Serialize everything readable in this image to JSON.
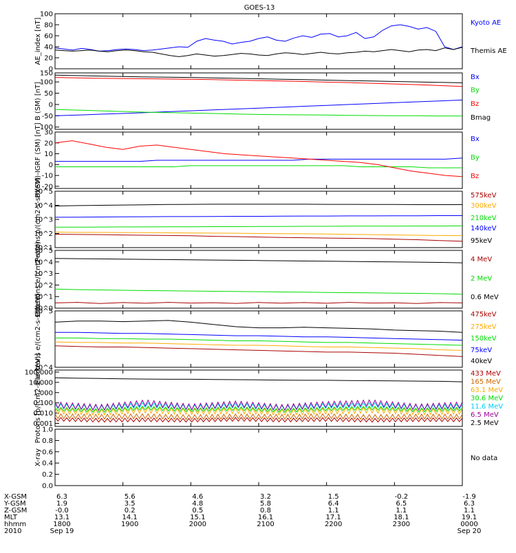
{
  "title": "GOES-13",
  "colors": {
    "black": "#000000",
    "blue": "#0000ff",
    "green": "#00dd00",
    "red": "#ff0000",
    "darkred": "#aa0000",
    "orange": "#ffaa00",
    "cyan": "#00ccff",
    "purple": "#990099",
    "lightgreen": "#55ee55",
    "brown": "#aa3300"
  },
  "chart_data": [
    {
      "type": "line",
      "ylabel": "AE_index [nT]",
      "ylim": [
        0,
        100
      ],
      "yscale": "linear",
      "yticks": [
        "0",
        "20",
        "40",
        "60",
        "80",
        "100"
      ],
      "series": [
        {
          "name": "Kyoto AE",
          "color": "#0000ff",
          "values": [
            38,
            36,
            34,
            37,
            35,
            32,
            33,
            35,
            36,
            35,
            33,
            34,
            36,
            38,
            40,
            39,
            50,
            55,
            52,
            50,
            45,
            48,
            50,
            55,
            58,
            52,
            50,
            56,
            60,
            57,
            63,
            64,
            58,
            60,
            66,
            55,
            58,
            70,
            78,
            80,
            77,
            72,
            75,
            68,
            40,
            35,
            40
          ]
        },
        {
          "name": "Themis AE",
          "color": "#000000",
          "values": [
            34,
            33,
            32,
            33,
            34,
            32,
            31,
            33,
            34,
            33,
            31,
            30,
            27,
            24,
            22,
            24,
            27,
            25,
            23,
            24,
            26,
            28,
            27,
            25,
            24,
            27,
            29,
            28,
            26,
            28,
            30,
            28,
            27,
            29,
            30,
            32,
            31,
            33,
            35,
            33,
            31,
            34,
            35,
            33,
            38,
            35,
            39
          ]
        }
      ]
    },
    {
      "type": "line",
      "ylabel": "B (SM) [nT]",
      "ylim": [
        -110,
        140
      ],
      "yscale": "linear",
      "yticks": [
        "-100",
        "-50",
        "0",
        "50",
        "100",
        "150"
      ],
      "series": [
        {
          "name": "Bx",
          "color": "#0000ff",
          "values": [
            -50,
            -47,
            -43,
            -40,
            -36,
            -32,
            -28,
            -24,
            -20,
            -16,
            -12,
            -8,
            -4,
            0,
            4,
            8,
            12,
            16,
            20
          ]
        },
        {
          "name": "By",
          "color": "#00dd00",
          "values": [
            -22,
            -25,
            -28,
            -31,
            -34,
            -36,
            -38,
            -40,
            -42,
            -44,
            -45,
            -46,
            -47,
            -48,
            -49,
            -50,
            -50,
            -51,
            -51
          ]
        },
        {
          "name": "Bz",
          "color": "#ff0000",
          "values": [
            120,
            118,
            116,
            115,
            114,
            113,
            112,
            110,
            108,
            106,
            104,
            102,
            99,
            97,
            94,
            91,
            88,
            84,
            80
          ]
        },
        {
          "name": "Bmag",
          "color": "#000000",
          "values": [
            130,
            128,
            126,
            124,
            122,
            121,
            120,
            118,
            116,
            114,
            112,
            110,
            108,
            106,
            104,
            102,
            100,
            98,
            96
          ]
        }
      ]
    },
    {
      "type": "line",
      "ylabel": "B (SM)-IGRF (SM) [nT]",
      "ylim": [
        -22,
        30
      ],
      "yscale": "linear",
      "yticks": [
        "-20",
        "-10",
        "0",
        "10",
        "20",
        "30"
      ],
      "series": [
        {
          "name": "Bx",
          "color": "#0000ff",
          "values": [
            3,
            3,
            3,
            3,
            3,
            3,
            4,
            4,
            4,
            4,
            4,
            4,
            4,
            4,
            4,
            5,
            5,
            5,
            5,
            5,
            5,
            5,
            5,
            5,
            6
          ]
        },
        {
          "name": "By",
          "color": "#00dd00",
          "values": [
            -2,
            -2,
            -2,
            -2,
            -2,
            -2,
            -2,
            -2,
            -1,
            -1,
            -1,
            -1,
            -1,
            -1,
            -1,
            -1,
            -1,
            -1,
            -2,
            -2,
            -2,
            -2,
            -3,
            -3,
            -3
          ]
        },
        {
          "name": "Bz",
          "color": "#ff0000",
          "values": [
            20,
            22,
            19,
            16,
            14,
            17,
            18,
            16,
            14,
            12,
            10,
            9,
            8,
            7,
            6,
            5,
            4,
            3,
            2,
            0,
            -3,
            -6,
            -8,
            -10,
            -11
          ]
        }
      ]
    },
    {
      "type": "line",
      "ylabel": "Protons p/(cm2-s-sr-keV)",
      "ylim": [
        1,
        5
      ],
      "yscale": "log",
      "yticks": [
        "10^1",
        "10^2",
        "10^3",
        "10^4",
        "10^5"
      ],
      "series": [
        {
          "name": "575keV",
          "color": "#aa0000",
          "values": [
            1.95,
            1.93,
            1.92,
            1.9,
            1.88,
            1.86,
            1.84,
            1.8,
            1.78,
            1.75,
            1.72,
            1.7,
            1.68,
            1.66,
            1.64,
            1.6,
            1.56,
            1.5,
            1.45
          ]
        },
        {
          "name": "300keV",
          "color": "#ffaa00",
          "values": [
            2.1,
            2.08,
            2.08,
            2.07,
            2.06,
            2.05,
            2.04,
            2.03,
            2.02,
            2.0,
            1.99,
            1.98,
            1.96,
            1.94,
            1.92,
            1.9,
            1.88,
            1.86,
            1.85
          ]
        },
        {
          "name": "210keV",
          "color": "#00dd00",
          "values": [
            2.45,
            2.45,
            2.46,
            2.47,
            2.47,
            2.48,
            2.48,
            2.49,
            2.49,
            2.5,
            2.5,
            2.51,
            2.51,
            2.52,
            2.52,
            2.52,
            2.53,
            2.53,
            2.54
          ]
        },
        {
          "name": "140keV",
          "color": "#0000ff",
          "values": [
            3.15,
            3.16,
            3.17,
            3.18,
            3.19,
            3.2,
            3.2,
            3.21,
            3.22,
            3.22,
            3.23,
            3.24,
            3.24,
            3.25,
            3.25,
            3.26,
            3.26,
            3.27,
            3.27
          ]
        },
        {
          "name": "95keV",
          "color": "#000000",
          "values": [
            3.95,
            3.98,
            4.0,
            4.02,
            4.04,
            4.06,
            4.07,
            4.08,
            4.08,
            4.08,
            4.08,
            4.08,
            4.07,
            4.07,
            4.06,
            4.06,
            4.05,
            4.05,
            4.05
          ]
        }
      ]
    },
    {
      "type": "line",
      "ylabel": "Electrons e/(cm2-s-sr)",
      "ylim": [
        0,
        5
      ],
      "yscale": "log",
      "yticks": [
        "10^0",
        "10^1",
        "10^2",
        "10^3",
        "10^4",
        "10^5"
      ],
      "series": [
        {
          "name": "4 MeV",
          "color": "#aa0000",
          "values": [
            0.45,
            0.5,
            0.4,
            0.48,
            0.42,
            0.5,
            0.44,
            0.47,
            0.41,
            0.49,
            0.43,
            0.48,
            0.42,
            0.5,
            0.44,
            0.46,
            0.4,
            0.48,
            0.45
          ]
        },
        {
          "name": "2 MeV",
          "color": "#00dd00",
          "values": [
            1.65,
            1.6,
            1.58,
            1.55,
            1.52,
            1.5,
            1.48,
            1.46,
            1.44,
            1.42,
            1.4,
            1.38,
            1.36,
            1.34,
            1.32,
            1.3,
            1.28,
            1.25,
            1.2
          ]
        },
        {
          "name": "0.6 MeV",
          "color": "#000000",
          "values": [
            4.3,
            4.28,
            4.26,
            4.24,
            4.22,
            4.2,
            4.18,
            4.16,
            4.14,
            4.12,
            4.1,
            4.08,
            4.06,
            4.04,
            4.02,
            4.0,
            3.98,
            3.96,
            3.92
          ]
        }
      ]
    },
    {
      "type": "line",
      "ylabel": "Electrons e/(cm2-s-sr-keV)",
      "ylim": [
        4,
        5
      ],
      "yscale": "log",
      "yticks": [
        "10^4",
        "10^5"
      ],
      "series": [
        {
          "name": "475keV",
          "color": "#aa0000",
          "values": [
            4.38,
            4.37,
            4.36,
            4.36,
            4.35,
            4.34,
            4.33,
            4.32,
            4.31,
            4.3,
            4.29,
            4.28,
            4.27,
            4.27,
            4.26,
            4.25,
            4.23,
            4.21,
            4.19
          ]
        },
        {
          "name": "275keV",
          "color": "#ffaa00",
          "values": [
            4.45,
            4.44,
            4.44,
            4.43,
            4.43,
            4.42,
            4.41,
            4.4,
            4.39,
            4.39,
            4.38,
            4.37,
            4.36,
            4.36,
            4.35,
            4.34,
            4.33,
            4.31,
            4.3
          ]
        },
        {
          "name": "150keV",
          "color": "#00dd00",
          "values": [
            4.52,
            4.52,
            4.51,
            4.51,
            4.5,
            4.5,
            4.49,
            4.48,
            4.47,
            4.47,
            4.46,
            4.45,
            4.44,
            4.44,
            4.43,
            4.42,
            4.41,
            4.4,
            4.39
          ]
        },
        {
          "name": "75keV",
          "color": "#0000ff",
          "values": [
            4.62,
            4.62,
            4.61,
            4.6,
            4.6,
            4.59,
            4.58,
            4.57,
            4.56,
            4.56,
            4.55,
            4.54,
            4.54,
            4.53,
            4.52,
            4.51,
            4.5,
            4.49,
            4.48
          ]
        },
        {
          "name": "40keV",
          "color": "#000000",
          "values": [
            4.8,
            4.82,
            4.82,
            4.81,
            4.82,
            4.83,
            4.8,
            4.76,
            4.72,
            4.7,
            4.7,
            4.71,
            4.7,
            4.69,
            4.68,
            4.66,
            4.65,
            4.64,
            4.62
          ]
        }
      ]
    },
    {
      "type": "line",
      "ylabel": "Protons [p/(cm2-s-sr-keV)]",
      "ylim": [
        -3.3,
        2.2
      ],
      "yscale": "log",
      "yticks": [
        "0.001",
        "0.010",
        "0.100",
        "1.000",
        "10.000",
        "100.000"
      ],
      "series": [
        {
          "name": "433 MeV",
          "color": "#aa0000",
          "values": [
            -2.6,
            -2.7,
            -2.65,
            -2.7,
            -2.6,
            -2.68,
            -2.62,
            -2.7,
            -2.64,
            -2.66
          ]
        },
        {
          "name": "165 MeV",
          "color": "#cc6600",
          "values": [
            -2.3,
            -2.35,
            -2.3,
            -2.4,
            -2.32,
            -2.36,
            -2.3,
            -2.38,
            -2.33,
            -2.35
          ]
        },
        {
          "name": "63.1 MeV",
          "color": "#ffaa00",
          "values": [
            -1.8,
            -1.9,
            -1.7,
            -1.85,
            -1.75,
            -1.9,
            -1.8,
            -1.7,
            -1.85,
            -1.8
          ]
        },
        {
          "name": "30.6 MeV",
          "color": "#00dd00",
          "values": [
            -1.6,
            -1.75,
            -1.5,
            -1.7,
            -1.55,
            -1.75,
            -1.6,
            -1.5,
            -1.7,
            -1.6
          ]
        },
        {
          "name": "11.6 MeV",
          "color": "#00ccff",
          "values": [
            -1.3,
            -1.5,
            -1.2,
            -1.45,
            -1.25,
            -1.5,
            -1.3,
            -1.2,
            -1.45,
            -1.35
          ]
        },
        {
          "name": "6.5 MeV",
          "color": "#990099",
          "values": [
            -1.2,
            -1.45,
            -1.0,
            -1.4,
            -1.1,
            -1.45,
            -1.15,
            -1.0,
            -1.4,
            -1.2
          ]
        },
        {
          "name": "2.5 MeV",
          "color": "#000000",
          "values": [
            1.45,
            1.4,
            1.38,
            1.35,
            1.32,
            1.3,
            1.3,
            1.28,
            1.26,
            1.24,
            1.22,
            1.2,
            1.2,
            1.18,
            1.16,
            1.14,
            1.12,
            1.1,
            1.05
          ]
        }
      ]
    },
    {
      "type": "line",
      "ylabel": "X-ray",
      "ylim": [
        0,
        1
      ],
      "yscale": "linear",
      "yticks": [
        "0.0",
        "0.2",
        "0.4",
        "0.6",
        "0.8",
        "1.0"
      ],
      "note": "No data",
      "series": []
    }
  ],
  "ephemeris": {
    "row_labels": [
      "X-GSM",
      "Y-GSM",
      "Z-GSM",
      "MLT",
      "hhmm",
      "2010"
    ],
    "columns": [
      {
        "values": [
          "6.3",
          "1.9",
          "-0.0",
          "13.1",
          "1800",
          "Sep 19"
        ]
      },
      {
        "values": [
          "5.6",
          "3.5",
          "0.2",
          "14.1",
          "1900",
          ""
        ]
      },
      {
        "values": [
          "4.6",
          "4.8",
          "0.5",
          "15.1",
          "2000",
          ""
        ]
      },
      {
        "values": [
          "3.2",
          "5.8",
          "0.8",
          "16.1",
          "2100",
          ""
        ]
      },
      {
        "values": [
          "1.5",
          "6.4",
          "1.1",
          "17.1",
          "2200",
          ""
        ]
      },
      {
        "values": [
          "-0.2",
          "6.5",
          "1.1",
          "18.1",
          "2300",
          ""
        ]
      },
      {
        "values": [
          "-1.9",
          "6.3",
          "1.1",
          "19.1",
          "0000",
          "Sep 20"
        ]
      }
    ]
  }
}
